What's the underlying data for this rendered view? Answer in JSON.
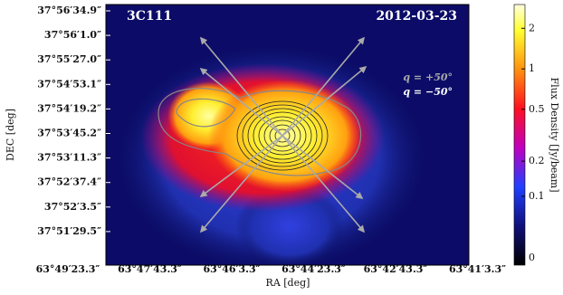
{
  "chart_data": {
    "type": "image",
    "title": "3C111",
    "date": "2012-03-23",
    "xlabel": "RA [deg]",
    "ylabel": "DEC [deg]",
    "xtick_labels": [
      "63°49′23.3″",
      "63°47′43.3″",
      "63°46′3.3″",
      "63°44′23.3″",
      "63°42′43.3″",
      "63°41′3.3″"
    ],
    "ytick_labels": [
      "37°56′34.9″",
      "37°56′1.0″",
      "37°55′27.0″",
      "37°54′53.1″",
      "37°54′19.2″",
      "37°53′45.2″",
      "37°53′11.3″",
      "37°52′37.4″",
      "37°52′3.5″",
      "37°51′29.5″"
    ],
    "legend": [
      "q = +50°",
      "q = −50°"
    ],
    "colorbar": {
      "label": "Flux Density [Jy/beam]",
      "scale": "asinh",
      "clim": [
        -0.01,
        3
      ],
      "ticks": [
        0,
        0.1,
        0.2,
        0.5,
        1,
        2
      ]
    }
  }
}
